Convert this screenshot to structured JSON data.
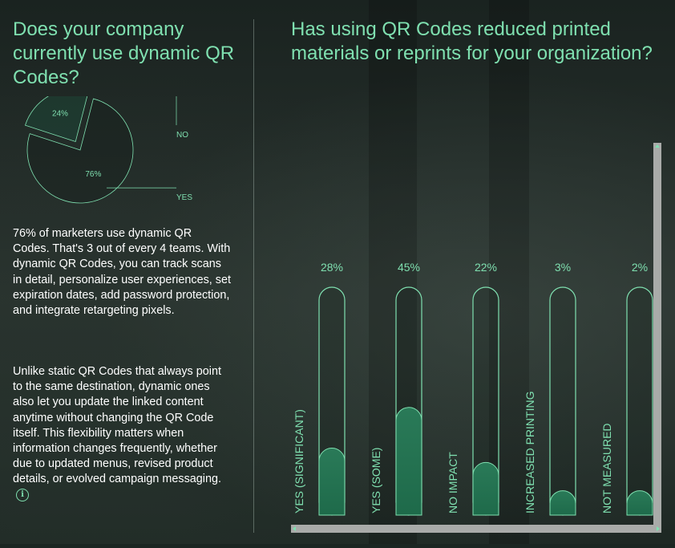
{
  "left": {
    "title": "Does your company currently use dynamic QR Codes?",
    "pie": {
      "slices": [
        {
          "label": "NO",
          "value_label": "24%",
          "value": 24
        },
        {
          "label": "YES",
          "value_label": "76%",
          "value": 76
        }
      ]
    },
    "paragraph1": "76% of marketers use dynamic QR Codes. That's 3 out of every 4 teams. With dynamic QR Codes, you can track scans in detail, personalize user experiences, set expiration dates, add password protection, and integrate retargeting pixels.",
    "paragraph2": "Unlike static QR Codes that always point to the same destination, dynamic ones also let you update the linked content anytime without changing the QR Code itself. This flexibility matters when information changes frequently, whether due to updated menus, revised product details, or evolved campaign messaging.",
    "info_icon": "info-icon"
  },
  "right": {
    "title": "Has using QR Codes reduced printed materials or reprints for your organization?"
  },
  "colors": {
    "accent": "#7fe0b0",
    "bar_fill": "#1e6a4a",
    "text": "#ffffff"
  },
  "chart_data": [
    {
      "type": "pie",
      "title": "Does your company currently use dynamic QR Codes?",
      "categories": [
        "NO",
        "YES"
      ],
      "values": [
        24,
        76
      ],
      "labels": [
        "24%",
        "76%"
      ]
    },
    {
      "type": "bar",
      "title": "Has using QR Codes reduced printed materials or reprints for your organization?",
      "categories": [
        "YES (SIGNIFICANT)",
        "YES (SOME)",
        "NO IMPACT",
        "INCREASED PRINTING",
        "NOT MEASURED"
      ],
      "values": [
        28,
        45,
        22,
        3,
        2
      ],
      "value_labels": [
        "28%",
        "45%",
        "22%",
        "3%",
        "2%"
      ],
      "ylim": [
        0,
        100
      ],
      "xlabel": "",
      "ylabel": ""
    }
  ]
}
